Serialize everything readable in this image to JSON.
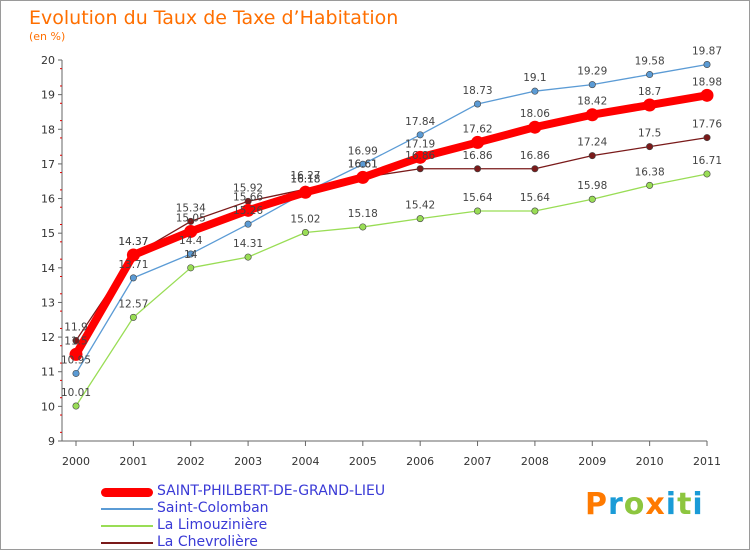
{
  "header": {
    "title": "Evolution du Taux de Taxe d’Habitation",
    "unit": "(en %)"
  },
  "brand": {
    "letters": [
      "P",
      "r",
      "o",
      "x",
      "i",
      "t",
      "i"
    ],
    "colors": [
      "#ff7a00",
      "#1a9bd7",
      "#8dc63f",
      "#ff7a00",
      "#1a9bd7",
      "#8dc63f",
      "#1a9bd7"
    ]
  },
  "chart_data": {
    "type": "line",
    "x": [
      "2000",
      "2001",
      "2002",
      "2003",
      "2004",
      "2005",
      "2006",
      "2007",
      "2008",
      "2009",
      "2010",
      "2011"
    ],
    "ylim": [
      9,
      20
    ],
    "yticks": [
      9,
      10,
      11,
      12,
      13,
      14,
      15,
      16,
      17,
      18,
      19,
      20
    ],
    "grid": false,
    "legend_position": "bottom-left",
    "series": [
      {
        "name": "SAINT-PHILBERT-DE-GRAND-LIEU",
        "color": "#ff0000",
        "emphasis": true,
        "values": [
          11.5,
          14.37,
          15.05,
          15.66,
          16.18,
          16.61,
          17.19,
          17.62,
          18.06,
          18.42,
          18.7,
          18.98
        ],
        "labels": [
          "11.5",
          "14.37",
          "15.05",
          "15.66",
          "16.18",
          "16.61",
          "17.19",
          "17.62",
          "18.06",
          "18.42",
          "18.7",
          "18.98"
        ]
      },
      {
        "name": "Saint-Colomban",
        "color": "#5b9bd5",
        "values": [
          10.95,
          13.71,
          14.4,
          15.26,
          16.18,
          16.99,
          17.84,
          18.73,
          19.1,
          19.29,
          19.58,
          19.87
        ],
        "labels": [
          "10.95",
          "13.71",
          "14.4",
          "15.26",
          "16.18",
          "16.99",
          "17.84",
          "18.73",
          "19.1",
          "19.29",
          "19.58",
          "19.87"
        ]
      },
      {
        "name": "La Limouzinière",
        "color": "#99dd55",
        "values": [
          10.01,
          12.57,
          14.0,
          14.31,
          15.02,
          15.18,
          15.42,
          15.64,
          15.64,
          15.98,
          16.38,
          16.71
        ],
        "labels": [
          "10.01",
          "12.57",
          "14",
          "14.31",
          "15.02",
          "15.18",
          "15.42",
          "15.64",
          "15.64",
          "15.98",
          "16.38",
          "16.71"
        ]
      },
      {
        "name": "La Chevrolière",
        "color": "#7a1a1a",
        "values": [
          11.9,
          14.37,
          15.34,
          15.92,
          16.27,
          16.61,
          16.86,
          16.86,
          16.86,
          17.24,
          17.5,
          17.76
        ],
        "labels": [
          "11.9",
          "14.37",
          "15.34",
          "15.92",
          "16.27",
          "16.61",
          "16.86",
          "16.86",
          "16.86",
          "17.24",
          "17.5",
          "17.76"
        ]
      }
    ]
  }
}
